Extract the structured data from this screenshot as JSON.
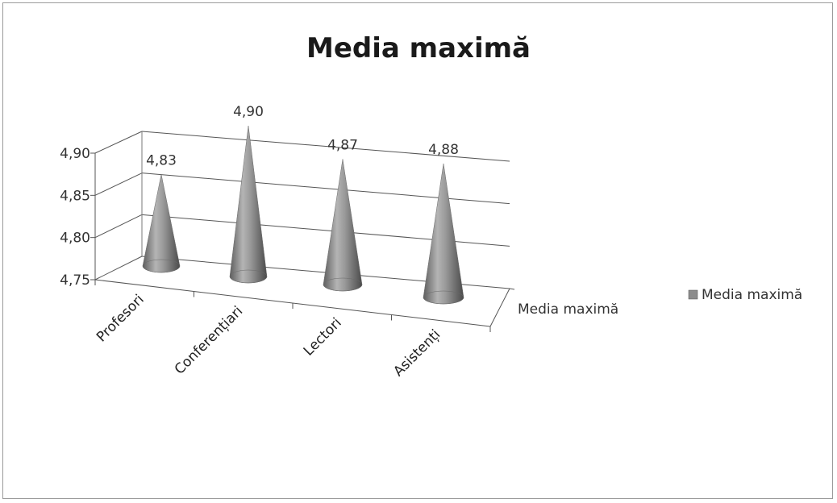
{
  "chart_data": {
    "type": "bar",
    "style": "3d-cone",
    "title": "Media maximă",
    "categories": [
      "Profesori",
      "Conferențiari",
      "Lectori",
      "Asistenți"
    ],
    "series": [
      {
        "name": "Media maximă",
        "values": [
          4.83,
          4.9,
          4.87,
          4.88
        ]
      }
    ],
    "data_labels": [
      "4,83",
      "4,90",
      "4,87",
      "4,88"
    ],
    "y_ticks": [
      "4,75",
      "4,80",
      "4,85",
      "4,90"
    ],
    "ylim": [
      4.75,
      4.9
    ],
    "depth_axis_label": "Media maximă",
    "legend": {
      "position": "right",
      "entries": [
        "Media maximă"
      ]
    },
    "grid": true,
    "colors": {
      "cone": "#8c8c8c",
      "grid": "#555555",
      "frame": "#9a9a9a"
    }
  }
}
